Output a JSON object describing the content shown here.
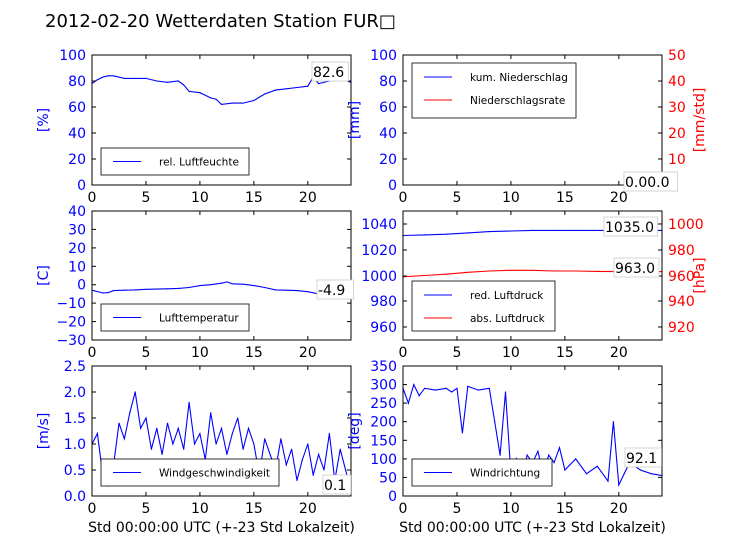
{
  "figure": {
    "title": "2012-02-20 Wetterdaten Station FUR□"
  },
  "colors": {
    "primary": "#0000ff",
    "secondary": "#ff0000",
    "axis": "#000000"
  },
  "chart_data": [
    {
      "id": "humidity",
      "type": "line",
      "ylabel": "[%]",
      "ylim": [
        0,
        100
      ],
      "yticks": [
        "0",
        "20",
        "40",
        "60",
        "80",
        "100"
      ],
      "xlim": [
        0,
        24
      ],
      "xticks": [
        "0",
        "5",
        "10",
        "15",
        "20"
      ],
      "xlabel": "",
      "legend": {
        "placement": "lower-left",
        "entries": [
          "rel. Luftfeuchte"
        ]
      },
      "annotation": "82.6",
      "series": [
        {
          "name": "rel. Luftfeuchte",
          "x": [
            0,
            0.5,
            1,
            1.5,
            2,
            3,
            4,
            5,
            6,
            7,
            8,
            8.5,
            9,
            10,
            11,
            11.5,
            12,
            13,
            14,
            15,
            16,
            17,
            18,
            19,
            20,
            20.5,
            21,
            22,
            23,
            24
          ],
          "y": [
            78,
            81,
            83,
            84,
            84,
            82,
            82,
            82,
            80,
            79,
            80,
            77,
            72,
            71,
            67,
            66,
            62,
            63,
            63,
            65,
            70,
            73,
            74,
            75,
            76,
            83,
            78,
            80,
            82,
            79
          ]
        }
      ]
    },
    {
      "id": "precip",
      "type": "line",
      "ylabel": "[mm]",
      "ylabel_right": "[mm/std]",
      "ylim": [
        0,
        100
      ],
      "ylim_right": [
        0,
        50
      ],
      "yticks": [
        "0",
        "20",
        "40",
        "60",
        "80",
        "100"
      ],
      "yticks_right": [
        "0",
        "10",
        "20",
        "30",
        "40",
        "50"
      ],
      "xlim": [
        0,
        24
      ],
      "xticks": [
        "0",
        "5",
        "10",
        "15",
        "20"
      ],
      "xlabel": "",
      "legend": {
        "placement": "upper-left",
        "entries": [
          "kum. Niederschlag",
          "Niederschlagsrate"
        ]
      },
      "annotation": "0.00.0",
      "series": [
        {
          "name": "kum. Niederschlag",
          "axis": "left",
          "x": [
            0,
            24
          ],
          "y": [
            0,
            0
          ]
        },
        {
          "name": "Niederschlagsrate",
          "axis": "right",
          "x": [
            0,
            24
          ],
          "y": [
            0,
            0
          ]
        }
      ]
    },
    {
      "id": "temperature",
      "type": "line",
      "ylabel": "[C]",
      "ylim": [
        -30,
        40
      ],
      "yticks": [
        "−30",
        "−20",
        "−10",
        "0",
        "10",
        "20",
        "30",
        "40"
      ],
      "xlim": [
        0,
        24
      ],
      "xticks": [
        "0",
        "5",
        "10",
        "15",
        "20"
      ],
      "xlabel": "",
      "legend": {
        "placement": "lower-left",
        "entries": [
          "Lufttemperatur"
        ]
      },
      "annotation": "-4.9",
      "series": [
        {
          "name": "Lufttemperatur",
          "x": [
            0,
            1,
            1.5,
            2,
            3,
            4,
            5,
            6,
            7,
            8,
            9,
            10,
            11,
            12,
            12.5,
            13,
            14,
            15,
            16,
            17,
            18,
            19,
            20,
            21,
            22,
            23,
            24
          ],
          "y": [
            -3,
            -4.5,
            -4.3,
            -3.2,
            -3,
            -2.8,
            -2.5,
            -2.4,
            -2.2,
            -2,
            -1.5,
            -0.5,
            0,
            0.8,
            1.5,
            0.5,
            0.3,
            -0.5,
            -1.5,
            -2.8,
            -3,
            -3.2,
            -3.8,
            -5,
            -4.2,
            -4.5,
            -4.9
          ]
        }
      ]
    },
    {
      "id": "pressure",
      "type": "line",
      "ylabel": "",
      "ylabel_right": "[hPa]",
      "ylim": [
        950,
        1050
      ],
      "ylim_right": [
        910,
        1010
      ],
      "yticks": [
        "960",
        "980",
        "1000",
        "1020",
        "1040"
      ],
      "yticks_right": [
        "920",
        "940",
        "960",
        "980",
        "1000"
      ],
      "xlim": [
        0,
        24
      ],
      "xticks": [
        "0",
        "5",
        "10",
        "15",
        "20"
      ],
      "xlabel": "",
      "legend": {
        "placement": "lower-left",
        "entries": [
          "red. Luftdruck",
          "abs. Luftdruck"
        ]
      },
      "annotations": [
        "1035.0",
        "963.0"
      ],
      "series": [
        {
          "name": "red. Luftdruck",
          "axis": "left",
          "x": [
            0,
            2,
            4,
            6,
            8,
            10,
            12,
            14,
            16,
            18,
            20,
            22,
            24
          ],
          "y": [
            1031,
            1031.5,
            1032,
            1033,
            1034,
            1034.5,
            1035,
            1035,
            1035,
            1035,
            1035,
            1035,
            1035
          ]
        },
        {
          "name": "abs. Luftdruck",
          "axis": "right",
          "x": [
            0,
            2,
            4,
            6,
            8,
            10,
            12,
            14,
            16,
            18,
            20,
            22,
            24
          ],
          "y": [
            959,
            960,
            961,
            962.5,
            963.5,
            964,
            964,
            963.5,
            963.5,
            963.2,
            963,
            963,
            963
          ]
        }
      ]
    },
    {
      "id": "wind-speed",
      "type": "line",
      "ylabel": "[m/s]",
      "ylim": [
        0,
        2.5
      ],
      "yticks": [
        "0.0",
        "0.5",
        "1.0",
        "1.5",
        "2.0",
        "2.5"
      ],
      "xlim": [
        0,
        24
      ],
      "xticks": [
        "0",
        "5",
        "10",
        "15",
        "20"
      ],
      "xlabel": "Std 00:00:00 UTC (+-23 Std Lokalzeit)",
      "legend": {
        "placement": "lower-left",
        "entries": [
          "Windgeschwindigkeit"
        ]
      },
      "annotation": "0.1",
      "series": [
        {
          "name": "Windgeschwindigkeit",
          "x": [
            0,
            0.5,
            1,
            1.5,
            2,
            2.5,
            3,
            3.5,
            4,
            4.5,
            5,
            5.5,
            6,
            6.5,
            7,
            7.5,
            8,
            8.5,
            9,
            9.5,
            10,
            10.5,
            11,
            11.5,
            12,
            12.5,
            13,
            13.5,
            14,
            14.5,
            15,
            15.5,
            16,
            16.5,
            17,
            17.5,
            18,
            18.5,
            19,
            19.5,
            20,
            20.5,
            21,
            21.5,
            22,
            22.5,
            23,
            23.5,
            24
          ],
          "y": [
            1.0,
            1.2,
            0.4,
            0.2,
            0.6,
            1.4,
            1.1,
            1.6,
            2.0,
            1.3,
            1.5,
            0.9,
            1.3,
            0.8,
            1.4,
            1.0,
            1.3,
            0.9,
            1.8,
            1.0,
            1.2,
            0.7,
            1.6,
            1.0,
            1.3,
            0.8,
            1.2,
            1.5,
            0.9,
            1.3,
            1.0,
            0.4,
            1.1,
            0.8,
            0.5,
            1.1,
            0.6,
            0.9,
            0.3,
            0.7,
            1.0,
            0.4,
            0.8,
            0.5,
            1.2,
            0.3,
            0.9,
            0.5,
            0.1
          ]
        }
      ]
    },
    {
      "id": "wind-direction",
      "type": "line",
      "ylabel": "[deg]",
      "ylim": [
        0,
        350
      ],
      "yticks": [
        "0",
        "50",
        "100",
        "150",
        "200",
        "250",
        "300",
        "350"
      ],
      "xlim": [
        0,
        24
      ],
      "xticks": [
        "0",
        "5",
        "10",
        "15",
        "20"
      ],
      "xlabel": "Std 00:00:00 UTC (+-23 Std Lokalzeit)",
      "legend": {
        "placement": "lower-left",
        "entries": [
          "Windrichtung"
        ]
      },
      "annotation": "92.1",
      "series": [
        {
          "name": "Windrichtung",
          "x": [
            0,
            0.5,
            1,
            1.5,
            2,
            3,
            4,
            4.5,
            5,
            5.5,
            6,
            7,
            8,
            8.5,
            9,
            9.5,
            10,
            10.5,
            11,
            11.5,
            12,
            12.5,
            13,
            13.5,
            14,
            14.5,
            15,
            16,
            17,
            18,
            19,
            19.5,
            20,
            20.5,
            21,
            22,
            23,
            24
          ],
          "y": [
            290,
            250,
            300,
            270,
            290,
            285,
            290,
            280,
            290,
            170,
            295,
            285,
            290,
            200,
            110,
            280,
            60,
            100,
            40,
            110,
            90,
            120,
            60,
            110,
            90,
            130,
            70,
            100,
            60,
            80,
            40,
            200,
            30,
            60,
            90,
            70,
            60,
            55
          ]
        }
      ]
    }
  ]
}
